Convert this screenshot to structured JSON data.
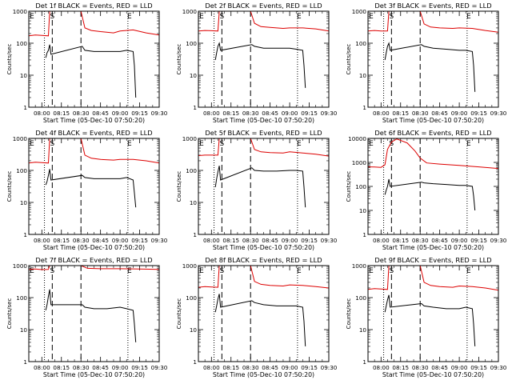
{
  "figure": {
    "x_axis_label": "Start Time (05-Dec-10 07:50:20)",
    "y_axis_label": "Counts/sec",
    "x_tick_labels": [
      "08:00",
      "08:15",
      "08:30",
      "08:45",
      "09:00",
      "09:15",
      "09:30"
    ],
    "y_tick_labels_standard": [
      "1",
      "10",
      "100",
      "1000"
    ],
    "y_tick_labels_det6": [
      "1",
      "10",
      "100",
      "1000",
      "10000"
    ],
    "markers": [
      "E",
      "S",
      "E"
    ],
    "colors": {
      "events": "#000000",
      "lld": "#dd0000",
      "axes": "#000000"
    }
  },
  "chart_data": [
    {
      "type": "line",
      "title": "Det 1f BLACK = Events, RED = LLD",
      "xlabel": "Start Time (05-Dec-10 07:50:20)",
      "ylabel": "Counts/sec",
      "x_range": [
        "07:50",
        "09:30"
      ],
      "ylim": [
        1,
        1000
      ],
      "y_scale": "log",
      "vertical_lines": {
        "dashed": [
          "08:08",
          "08:30"
        ],
        "dotted": [
          "08:02",
          "09:06"
        ]
      },
      "markers": [
        "E",
        "S",
        "E"
      ],
      "series": [
        {
          "color": "red",
          "x": [
            "07:50",
            "07:55",
            "08:00",
            "08:05",
            "08:06",
            "08:30",
            "08:33",
            "08:38",
            "08:45",
            "08:55",
            "09:00",
            "09:10",
            "09:20",
            "09:30"
          ],
          "y": [
            170,
            180,
            175,
            170,
            1000,
            1000,
            300,
            250,
            230,
            210,
            240,
            260,
            210,
            180
          ]
        },
        {
          "color": "black",
          "x": [
            "08:03",
            "08:04",
            "08:05",
            "08:06",
            "08:07",
            "08:31",
            "08:33",
            "08:40",
            "08:50",
            "09:00",
            "09:05",
            "09:10",
            "09:11",
            "09:12"
          ],
          "y": [
            35,
            50,
            60,
            90,
            45,
            80,
            60,
            55,
            55,
            55,
            60,
            55,
            20,
            2
          ]
        }
      ]
    },
    {
      "type": "line",
      "title": "Det 2f BLACK = Events, RED = LLD",
      "xlabel": "Start Time (05-Dec-10 07:50:20)",
      "ylabel": "Counts/sec",
      "x_range": [
        "07:50",
        "09:30"
      ],
      "ylim": [
        1,
        1000
      ],
      "y_scale": "log",
      "vertical_lines": {
        "dashed": [
          "08:08",
          "08:30"
        ],
        "dotted": [
          "08:02",
          "09:06"
        ]
      },
      "markers": [
        "E",
        "S",
        "E"
      ],
      "series": [
        {
          "color": "red",
          "x": [
            "07:50",
            "07:55",
            "08:00",
            "08:05",
            "08:06",
            "08:30",
            "08:33",
            "08:38",
            "08:45",
            "08:55",
            "09:00",
            "09:10",
            "09:20",
            "09:30"
          ],
          "y": [
            240,
            250,
            245,
            240,
            1000,
            1000,
            420,
            330,
            310,
            290,
            300,
            300,
            280,
            240
          ]
        },
        {
          "color": "black",
          "x": [
            "08:03",
            "08:04",
            "08:05",
            "08:06",
            "08:07",
            "08:31",
            "08:33",
            "08:40",
            "08:50",
            "09:00",
            "09:05",
            "09:10",
            "09:11",
            "09:12"
          ],
          "y": [
            30,
            50,
            80,
            100,
            60,
            90,
            80,
            70,
            70,
            70,
            65,
            60,
            20,
            4
          ]
        }
      ]
    },
    {
      "type": "line",
      "title": "Det 3f BLACK = Events, RED = LLD",
      "xlabel": "Start Time (05-Dec-10 07:50:20)",
      "ylabel": "Counts/sec",
      "x_range": [
        "07:50",
        "09:30"
      ],
      "ylim": [
        1,
        1000
      ],
      "y_scale": "log",
      "vertical_lines": {
        "dashed": [
          "08:08",
          "08:30"
        ],
        "dotted": [
          "08:02",
          "09:06"
        ]
      },
      "markers": [
        "E",
        "S",
        "E"
      ],
      "series": [
        {
          "color": "red",
          "x": [
            "07:50",
            "07:55",
            "08:00",
            "08:05",
            "08:06",
            "08:30",
            "08:33",
            "08:38",
            "08:45",
            "08:55",
            "09:00",
            "09:10",
            "09:20",
            "09:30"
          ],
          "y": [
            240,
            250,
            240,
            240,
            1000,
            1000,
            400,
            320,
            300,
            290,
            300,
            290,
            250,
            220
          ]
        },
        {
          "color": "black",
          "x": [
            "08:03",
            "08:04",
            "08:05",
            "08:06",
            "08:07",
            "08:31",
            "08:33",
            "08:40",
            "08:50",
            "09:00",
            "09:05",
            "09:10",
            "09:11",
            "09:12"
          ],
          "y": [
            30,
            50,
            80,
            100,
            60,
            90,
            80,
            70,
            65,
            60,
            60,
            55,
            20,
            3
          ]
        }
      ]
    },
    {
      "type": "line",
      "title": "Det 4f BLACK = Events, RED = LLD",
      "xlabel": "Start Time (05-Dec-10 07:50:20)",
      "ylabel": "Counts/sec",
      "x_range": [
        "07:50",
        "09:30"
      ],
      "ylim": [
        1,
        1000
      ],
      "y_scale": "log",
      "vertical_lines": {
        "dashed": [
          "08:08",
          "08:30"
        ],
        "dotted": [
          "08:02",
          "09:06"
        ]
      },
      "markers": [
        "E",
        "S",
        "E"
      ],
      "series": [
        {
          "color": "red",
          "x": [
            "07:50",
            "07:55",
            "08:00",
            "08:05",
            "08:06",
            "08:30",
            "08:33",
            "08:38",
            "08:45",
            "08:55",
            "09:00",
            "09:10",
            "09:20",
            "09:30"
          ],
          "y": [
            170,
            180,
            175,
            170,
            1000,
            1000,
            300,
            240,
            220,
            210,
            220,
            220,
            200,
            170
          ]
        },
        {
          "color": "black",
          "x": [
            "08:03",
            "08:04",
            "08:05",
            "08:06",
            "08:07",
            "08:31",
            "08:33",
            "08:40",
            "08:50",
            "09:00",
            "09:05",
            "09:10",
            "09:11",
            "09:12"
          ],
          "y": [
            35,
            45,
            70,
            110,
            50,
            70,
            60,
            55,
            55,
            55,
            60,
            50,
            20,
            7
          ]
        }
      ]
    },
    {
      "type": "line",
      "title": "Det 5f BLACK = Events, RED = LLD",
      "xlabel": "Start Time (05-Dec-10 07:50:20)",
      "ylabel": "Counts/sec",
      "x_range": [
        "07:50",
        "09:30"
      ],
      "ylim": [
        1,
        1000
      ],
      "y_scale": "log",
      "vertical_lines": {
        "dashed": [
          "08:08",
          "08:30"
        ],
        "dotted": [
          "08:02",
          "09:06"
        ]
      },
      "markers": [
        "E",
        "S",
        "E"
      ],
      "series": [
        {
          "color": "red",
          "x": [
            "07:50",
            "07:55",
            "08:00",
            "08:05",
            "08:06",
            "08:30",
            "08:33",
            "08:38",
            "08:45",
            "08:55",
            "09:00",
            "09:10",
            "09:20",
            "09:30"
          ],
          "y": [
            290,
            300,
            300,
            300,
            1000,
            1000,
            450,
            380,
            360,
            350,
            380,
            350,
            320,
            280
          ]
        },
        {
          "color": "black",
          "x": [
            "08:03",
            "08:04",
            "08:05",
            "08:06",
            "08:07",
            "08:31",
            "08:33",
            "08:40",
            "08:50",
            "09:00",
            "09:05",
            "09:10",
            "09:11",
            "09:12"
          ],
          "y": [
            30,
            55,
            90,
            140,
            50,
            120,
            100,
            95,
            95,
            100,
            100,
            95,
            30,
            7
          ]
        }
      ]
    },
    {
      "type": "line",
      "title": "Det 6f BLACK = Events, RED = LLD",
      "xlabel": "Start Time (05-Dec-10 07:50:20)",
      "ylabel": "Counts/sec",
      "x_range": [
        "07:50",
        "09:30"
      ],
      "ylim": [
        1,
        10000
      ],
      "y_scale": "log",
      "vertical_lines": {
        "dashed": [
          "08:08",
          "08:30"
        ],
        "dotted": [
          "08:02",
          "09:06"
        ]
      },
      "markers": [
        "E",
        "S",
        "E"
      ],
      "series": [
        {
          "color": "red",
          "x": [
            "07:50",
            "07:55",
            "08:00",
            "08:03",
            "08:05",
            "08:08",
            "08:12",
            "08:20",
            "08:26",
            "08:30",
            "08:35",
            "08:45",
            "09:00",
            "09:15",
            "09:30"
          ],
          "y": [
            650,
            640,
            620,
            800,
            3500,
            7000,
            9500,
            6500,
            3000,
            1500,
            950,
            850,
            750,
            650,
            560
          ]
        },
        {
          "color": "black",
          "x": [
            "08:03",
            "08:04",
            "08:05",
            "08:06",
            "08:07",
            "08:31",
            "08:33",
            "08:40",
            "08:50",
            "09:00",
            "09:05",
            "09:10",
            "09:11",
            "09:12"
          ],
          "y": [
            45,
            70,
            100,
            200,
            100,
            150,
            140,
            130,
            120,
            110,
            110,
            100,
            40,
            10
          ]
        }
      ]
    },
    {
      "type": "line",
      "title": "Det 7f BLACK = Events, RED = LLD",
      "xlabel": "Start Time (05-Dec-10 07:50:20)",
      "ylabel": "Counts/sec",
      "x_range": [
        "07:50",
        "09:30"
      ],
      "ylim": [
        1,
        1000
      ],
      "y_scale": "log",
      "vertical_lines": {
        "dashed": [
          "08:08",
          "08:30"
        ],
        "dotted": [
          "08:02",
          "09:06"
        ]
      },
      "markers": [
        "E",
        "S",
        "E"
      ],
      "series": [
        {
          "color": "red",
          "x": [
            "07:50",
            "07:55",
            "08:00",
            "08:05",
            "08:06",
            "08:30",
            "08:35",
            "08:45",
            "09:00",
            "09:15",
            "09:30"
          ],
          "y": [
            760,
            780,
            750,
            760,
            1000,
            1000,
            820,
            800,
            800,
            780,
            760
          ]
        },
        {
          "color": "black",
          "x": [
            "08:03",
            "08:04",
            "08:05",
            "08:06",
            "08:07",
            "08:31",
            "08:33",
            "08:40",
            "08:50",
            "09:00",
            "09:05",
            "09:10",
            "09:11",
            "09:12"
          ],
          "y": [
            40,
            60,
            110,
            180,
            60,
            60,
            50,
            45,
            45,
            50,
            45,
            40,
            15,
            4
          ]
        }
      ]
    },
    {
      "type": "line",
      "title": "Det 8f BLACK = Events, RED = LLD",
      "xlabel": "Start Time (05-Dec-10 07:50:20)",
      "ylabel": "Counts/sec",
      "x_range": [
        "07:50",
        "09:30"
      ],
      "ylim": [
        1,
        1000
      ],
      "y_scale": "log",
      "vertical_lines": {
        "dashed": [
          "08:08",
          "08:30"
        ],
        "dotted": [
          "08:02",
          "09:06"
        ]
      },
      "markers": [
        "E",
        "S",
        "E"
      ],
      "series": [
        {
          "color": "red",
          "x": [
            "07:50",
            "07:55",
            "08:00",
            "08:05",
            "08:06",
            "08:30",
            "08:33",
            "08:38",
            "08:45",
            "08:55",
            "09:00",
            "09:10",
            "09:20",
            "09:30"
          ],
          "y": [
            210,
            220,
            215,
            210,
            1000,
            1000,
            320,
            260,
            240,
            230,
            250,
            240,
            220,
            200
          ]
        },
        {
          "color": "black",
          "x": [
            "08:03",
            "08:04",
            "08:05",
            "08:06",
            "08:07",
            "08:31",
            "08:33",
            "08:40",
            "08:50",
            "09:00",
            "09:05",
            "09:10",
            "09:11",
            "09:12"
          ],
          "y": [
            35,
            55,
            90,
            130,
            50,
            80,
            70,
            60,
            55,
            55,
            55,
            50,
            18,
            3
          ]
        }
      ]
    },
    {
      "type": "line",
      "title": "Det 9f BLACK = Events, RED = LLD",
      "xlabel": "Start Time (05-Dec-10 07:50:20)",
      "ylabel": "Counts/sec",
      "x_range": [
        "07:50",
        "09:30"
      ],
      "ylim": [
        1,
        1000
      ],
      "y_scale": "log",
      "vertical_lines": {
        "dashed": [
          "08:08",
          "08:30"
        ],
        "dotted": [
          "08:02",
          "09:06"
        ]
      },
      "markers": [
        "E",
        "S",
        "E"
      ],
      "series": [
        {
          "color": "red",
          "x": [
            "07:50",
            "07:55",
            "08:00",
            "08:05",
            "08:06",
            "08:30",
            "08:33",
            "08:38",
            "08:45",
            "08:55",
            "09:00",
            "09:10",
            "09:20",
            "09:30"
          ],
          "y": [
            180,
            190,
            185,
            180,
            1000,
            1000,
            300,
            240,
            220,
            210,
            230,
            220,
            200,
            170
          ]
        },
        {
          "color": "black",
          "x": [
            "08:03",
            "08:04",
            "08:05",
            "08:06",
            "08:07",
            "08:31",
            "08:33",
            "08:40",
            "08:50",
            "09:00",
            "09:05",
            "09:10",
            "09:11",
            "09:12"
          ],
          "y": [
            35,
            55,
            85,
            120,
            50,
            65,
            55,
            50,
            45,
            45,
            50,
            45,
            15,
            3
          ]
        }
      ]
    }
  ]
}
